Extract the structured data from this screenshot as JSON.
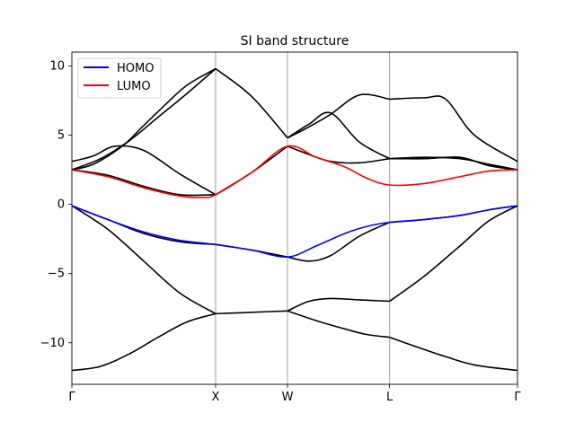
{
  "chart_data": {
    "type": "line",
    "title": "SI band structure",
    "xlabel": "",
    "ylabel": "",
    "xlim": [
      0,
      6.2
    ],
    "ylim": [
      -13,
      11
    ],
    "grid": "vertical lines at high-symmetry points",
    "legend_position": "top-left",
    "high_symmetry_points": [
      {
        "label": "Γ",
        "x": 0.0
      },
      {
        "label": "X",
        "x": 2.0
      },
      {
        "label": "W",
        "x": 3.0
      },
      {
        "label": "L",
        "x": 4.42
      },
      {
        "label": "Γ",
        "x": 6.2
      }
    ],
    "yticks": [
      10,
      5,
      0,
      -5,
      -10
    ],
    "ytick_labels": [
      "10",
      "5",
      "0",
      "−5",
      "−10"
    ],
    "colors": {
      "bands": "#000000",
      "homo": "#0000ff",
      "lumo": "#ff0000",
      "grid": "#b0b0b0"
    },
    "series": [
      {
        "role": "bands",
        "color": "#000000",
        "x": [
          0,
          0.4,
          0.8,
          1.2,
          1.6,
          2.0
        ],
        "y": [
          -12.0,
          -11.7,
          -10.8,
          -9.6,
          -8.5,
          -7.9
        ]
      },
      {
        "role": "bands",
        "color": "#000000",
        "x": [
          2.0,
          2.5,
          3.0
        ],
        "y": [
          -7.9,
          -7.8,
          -7.7
        ]
      },
      {
        "role": "bands",
        "color": "#000000",
        "x": [
          3.0,
          3.3,
          3.6,
          4.0,
          4.42
        ],
        "y": [
          -7.7,
          -7.0,
          -6.8,
          -6.9,
          -7.0
        ]
      },
      {
        "role": "bands",
        "color": "#000000",
        "x": [
          4.42,
          4.9,
          5.4,
          5.8,
          6.2
        ],
        "y": [
          -7.0,
          -5.2,
          -3.0,
          -1.2,
          -0.1
        ]
      },
      {
        "role": "bands",
        "color": "#000000",
        "x": [
          0,
          0.5,
          1.0,
          1.5,
          2.0
        ],
        "y": [
          -0.1,
          -1.8,
          -4.1,
          -6.4,
          -7.9
        ]
      },
      {
        "role": "bands",
        "color": "#000000",
        "x": [
          3.0,
          3.4,
          3.8,
          4.1,
          4.42
        ],
        "y": [
          -7.7,
          -8.4,
          -9.0,
          -9.4,
          -9.6
        ]
      },
      {
        "role": "bands",
        "color": "#000000",
        "x": [
          4.42,
          4.8,
          5.2,
          5.6,
          6.2
        ],
        "y": [
          -9.6,
          -10.3,
          -11.0,
          -11.6,
          -12.0
        ]
      },
      {
        "role": "bands",
        "color": "#000000",
        "x": [
          0,
          0.5,
          1.0,
          1.5,
          2.0
        ],
        "y": [
          -0.1,
          -1.1,
          -2.1,
          -2.7,
          -2.9
        ]
      },
      {
        "role": "bands",
        "color": "#000000",
        "x": [
          2.0,
          2.5,
          3.0
        ],
        "y": [
          -2.9,
          -3.3,
          -3.8
        ]
      },
      {
        "role": "bands",
        "color": "#000000",
        "x": [
          3.0,
          3.3,
          3.6,
          4.0,
          4.42
        ],
        "y": [
          -3.8,
          -4.1,
          -3.7,
          -2.3,
          -1.3
        ]
      },
      {
        "role": "bands",
        "color": "#000000",
        "x": [
          4.42,
          4.9,
          5.4,
          5.8,
          6.2
        ],
        "y": [
          -1.3,
          -1.1,
          -0.8,
          -0.4,
          -0.1
        ]
      },
      {
        "role": "bands",
        "color": "#000000",
        "x": [
          0,
          0.3,
          0.7,
          1.0,
          1.3,
          1.6,
          2.0
        ],
        "y": [
          2.5,
          2.9,
          4.2,
          5.7,
          7.2,
          8.6,
          9.8
        ]
      },
      {
        "role": "bands",
        "color": "#000000",
        "x": [
          2.0,
          2.5,
          3.0
        ],
        "y": [
          9.8,
          7.8,
          4.8
        ]
      },
      {
        "role": "bands",
        "color": "#000000",
        "x": [
          3.0,
          3.3,
          3.6,
          4.0,
          4.42
        ],
        "y": [
          4.8,
          5.6,
          6.5,
          7.9,
          7.6
        ]
      },
      {
        "role": "bands",
        "color": "#000000",
        "x": [
          4.42,
          4.9,
          5.2,
          5.6,
          6.2
        ],
        "y": [
          7.6,
          7.7,
          7.6,
          5.0,
          3.1
        ]
      },
      {
        "role": "bands",
        "color": "#000000",
        "x": [
          0,
          0.3,
          0.6,
          1.0,
          1.5,
          2.0
        ],
        "y": [
          3.1,
          3.5,
          4.2,
          3.9,
          2.2,
          0.7
        ]
      },
      {
        "role": "bands",
        "color": "#000000",
        "x": [
          2.0,
          2.5,
          3.0
        ],
        "y": [
          0.7,
          2.3,
          4.2
        ]
      },
      {
        "role": "bands",
        "color": "#000000",
        "x": [
          3.0,
          3.3,
          3.6,
          4.0,
          4.42
        ],
        "y": [
          4.2,
          3.6,
          3.1,
          3.0,
          3.3
        ]
      },
      {
        "role": "bands",
        "color": "#000000",
        "x": [
          4.42,
          4.9,
          5.4,
          5.8,
          6.2
        ],
        "y": [
          3.3,
          3.3,
          3.4,
          2.8,
          2.5
        ]
      },
      {
        "role": "bands",
        "color": "#000000",
        "x": [
          3.0,
          3.3,
          3.6,
          4.0,
          4.42
        ],
        "y": [
          4.8,
          5.8,
          6.6,
          4.5,
          3.3
        ]
      },
      {
        "role": "bands",
        "color": "#000000",
        "x": [
          4.42,
          4.9,
          5.4,
          5.8,
          6.2
        ],
        "y": [
          3.3,
          3.4,
          3.3,
          2.9,
          2.5
        ]
      },
      {
        "role": "bands",
        "color": "#000000",
        "x": [
          0,
          0.4,
          0.8,
          1.2,
          1.6,
          2.0
        ],
        "y": [
          2.5,
          3.3,
          4.6,
          6.3,
          8.0,
          9.8
        ]
      },
      {
        "role": "bands",
        "color": "#000000",
        "x": [
          0,
          0.5,
          1.0,
          1.5,
          2.0
        ],
        "y": [
          2.5,
          2.1,
          1.3,
          0.7,
          0.7
        ]
      },
      {
        "name": "HOMO",
        "role": "homo",
        "color": "#0000ff",
        "x": [
          0,
          0.5,
          1.0,
          1.5,
          2.0,
          2.5,
          3.0,
          3.4,
          3.8,
          4.1,
          4.42,
          4.9,
          5.4,
          5.8,
          6.2
        ],
        "y": [
          -0.1,
          -1.1,
          -2.0,
          -2.6,
          -2.9,
          -3.3,
          -3.8,
          -3.0,
          -2.1,
          -1.6,
          -1.3,
          -1.1,
          -0.8,
          -0.4,
          -0.1
        ]
      },
      {
        "name": "LUMO",
        "role": "lumo",
        "color": "#ff0000",
        "x": [
          0,
          0.5,
          1.0,
          1.5,
          1.8,
          2.0,
          2.5,
          3.0,
          3.4,
          3.8,
          4.1,
          4.42,
          4.9,
          5.4,
          5.8,
          6.2
        ],
        "y": [
          2.5,
          2.0,
          1.2,
          0.6,
          0.5,
          0.7,
          2.3,
          4.2,
          3.4,
          2.7,
          1.9,
          1.4,
          1.5,
          2.0,
          2.4,
          2.5
        ]
      }
    ]
  }
}
